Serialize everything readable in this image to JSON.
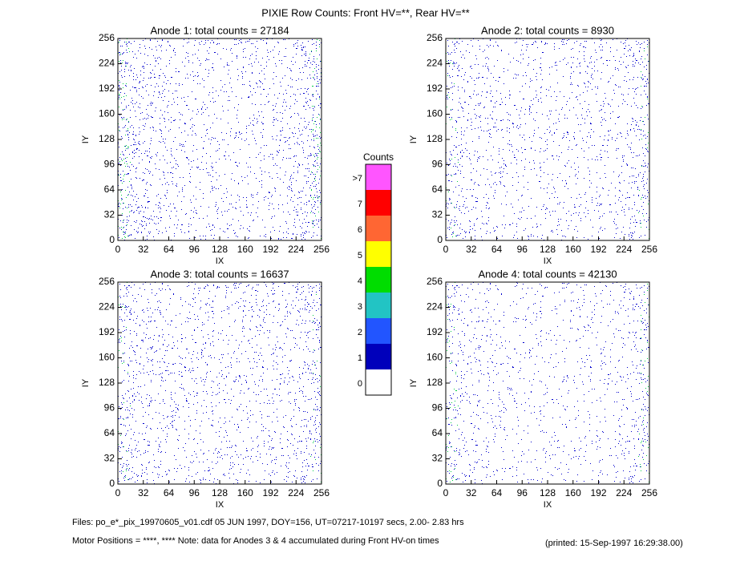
{
  "title": "PIXIE Row Counts:  Front HV=**, Rear HV=**",
  "chart_data": [
    {
      "type": "heatmap",
      "title": "Anode 1: total counts = 27184",
      "xlabel": "IX",
      "ylabel": "IY",
      "xlim": [
        0,
        256
      ],
      "ylim": [
        0,
        256
      ],
      "xticks": [
        0,
        32,
        64,
        96,
        128,
        160,
        192,
        224,
        256
      ],
      "yticks": [
        0,
        32,
        64,
        96,
        128,
        160,
        192,
        224,
        256
      ]
    },
    {
      "type": "heatmap",
      "title": "Anode 2: total counts = 8930",
      "xlabel": "IX",
      "ylabel": "IY",
      "xlim": [
        0,
        256
      ],
      "ylim": [
        0,
        256
      ],
      "xticks": [
        0,
        32,
        64,
        96,
        128,
        160,
        192,
        224,
        256
      ],
      "yticks": [
        0,
        32,
        64,
        96,
        128,
        160,
        192,
        224,
        256
      ]
    },
    {
      "type": "heatmap",
      "title": "Anode 3: total counts = 16637",
      "xlabel": "IX",
      "ylabel": "IY",
      "xlim": [
        0,
        256
      ],
      "ylim": [
        0,
        256
      ],
      "xticks": [
        0,
        32,
        64,
        96,
        128,
        160,
        192,
        224,
        256
      ],
      "yticks": [
        0,
        32,
        64,
        96,
        128,
        160,
        192,
        224,
        256
      ]
    },
    {
      "type": "heatmap",
      "title": "Anode 4: total counts = 42130",
      "xlabel": "IX",
      "ylabel": "IY",
      "xlim": [
        0,
        256
      ],
      "ylim": [
        0,
        256
      ],
      "xticks": [
        0,
        32,
        64,
        96,
        128,
        160,
        192,
        224,
        256
      ],
      "yticks": [
        0,
        32,
        64,
        96,
        128,
        160,
        192,
        224,
        256
      ]
    }
  ],
  "colorbar": {
    "title": "Counts",
    "levels": [
      0,
      1,
      2,
      3,
      4,
      5,
      6,
      7,
      {
        "value": 8,
        "label": ">7"
      }
    ],
    "colors": [
      "#ffffff",
      "#0000bb",
      "#2255ff",
      "#22c4c4",
      "#00dd00",
      "#ffff00",
      "#ff6633",
      "#ff0000",
      "#ff55ff"
    ]
  },
  "footer": {
    "files": "Files: po_e*_pix_19970605_v01.cdf     05 JUN 1997, DOY=156, UT=07217-10197 secs,  2.00- 2.83 hrs",
    "motor": "Motor Positions = ****, ****    Note: data for Anodes 3 & 4 accumulated during Front HV-on times",
    "printed": "(printed: 15-Sep-1997 16:29:38.00)"
  }
}
